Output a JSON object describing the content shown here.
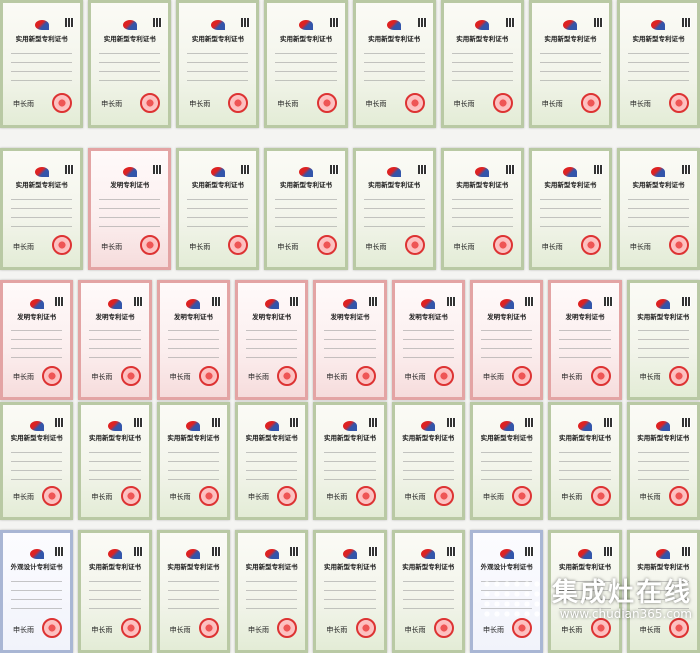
{
  "certificate_labels": {
    "utility": "实用新型专利证书",
    "invention": "发明专利证书",
    "design": "外观设计专利证书",
    "signature": "申长雨"
  },
  "rows": [
    [
      "utility",
      "utility",
      "utility",
      "utility",
      "utility",
      "utility",
      "utility",
      "utility"
    ],
    [
      "utility",
      "invention",
      "utility",
      "utility",
      "utility",
      "utility",
      "utility",
      "utility"
    ],
    [
      "invention",
      "invention",
      "invention",
      "invention",
      "invention",
      "invention",
      "invention",
      "invention",
      "utility"
    ],
    [
      "utility",
      "utility",
      "utility",
      "utility",
      "utility",
      "utility",
      "utility",
      "utility",
      "utility"
    ],
    [
      "design",
      "utility",
      "utility",
      "utility",
      "utility",
      "utility",
      "design",
      "utility",
      "utility"
    ]
  ],
  "watermark": {
    "name": "集成灶在线",
    "url": "www.chudian365.com"
  },
  "colors": {
    "seal": "#dd3333",
    "border_utility": "#b9c9a4",
    "border_invention": "#e3a4a4"
  }
}
